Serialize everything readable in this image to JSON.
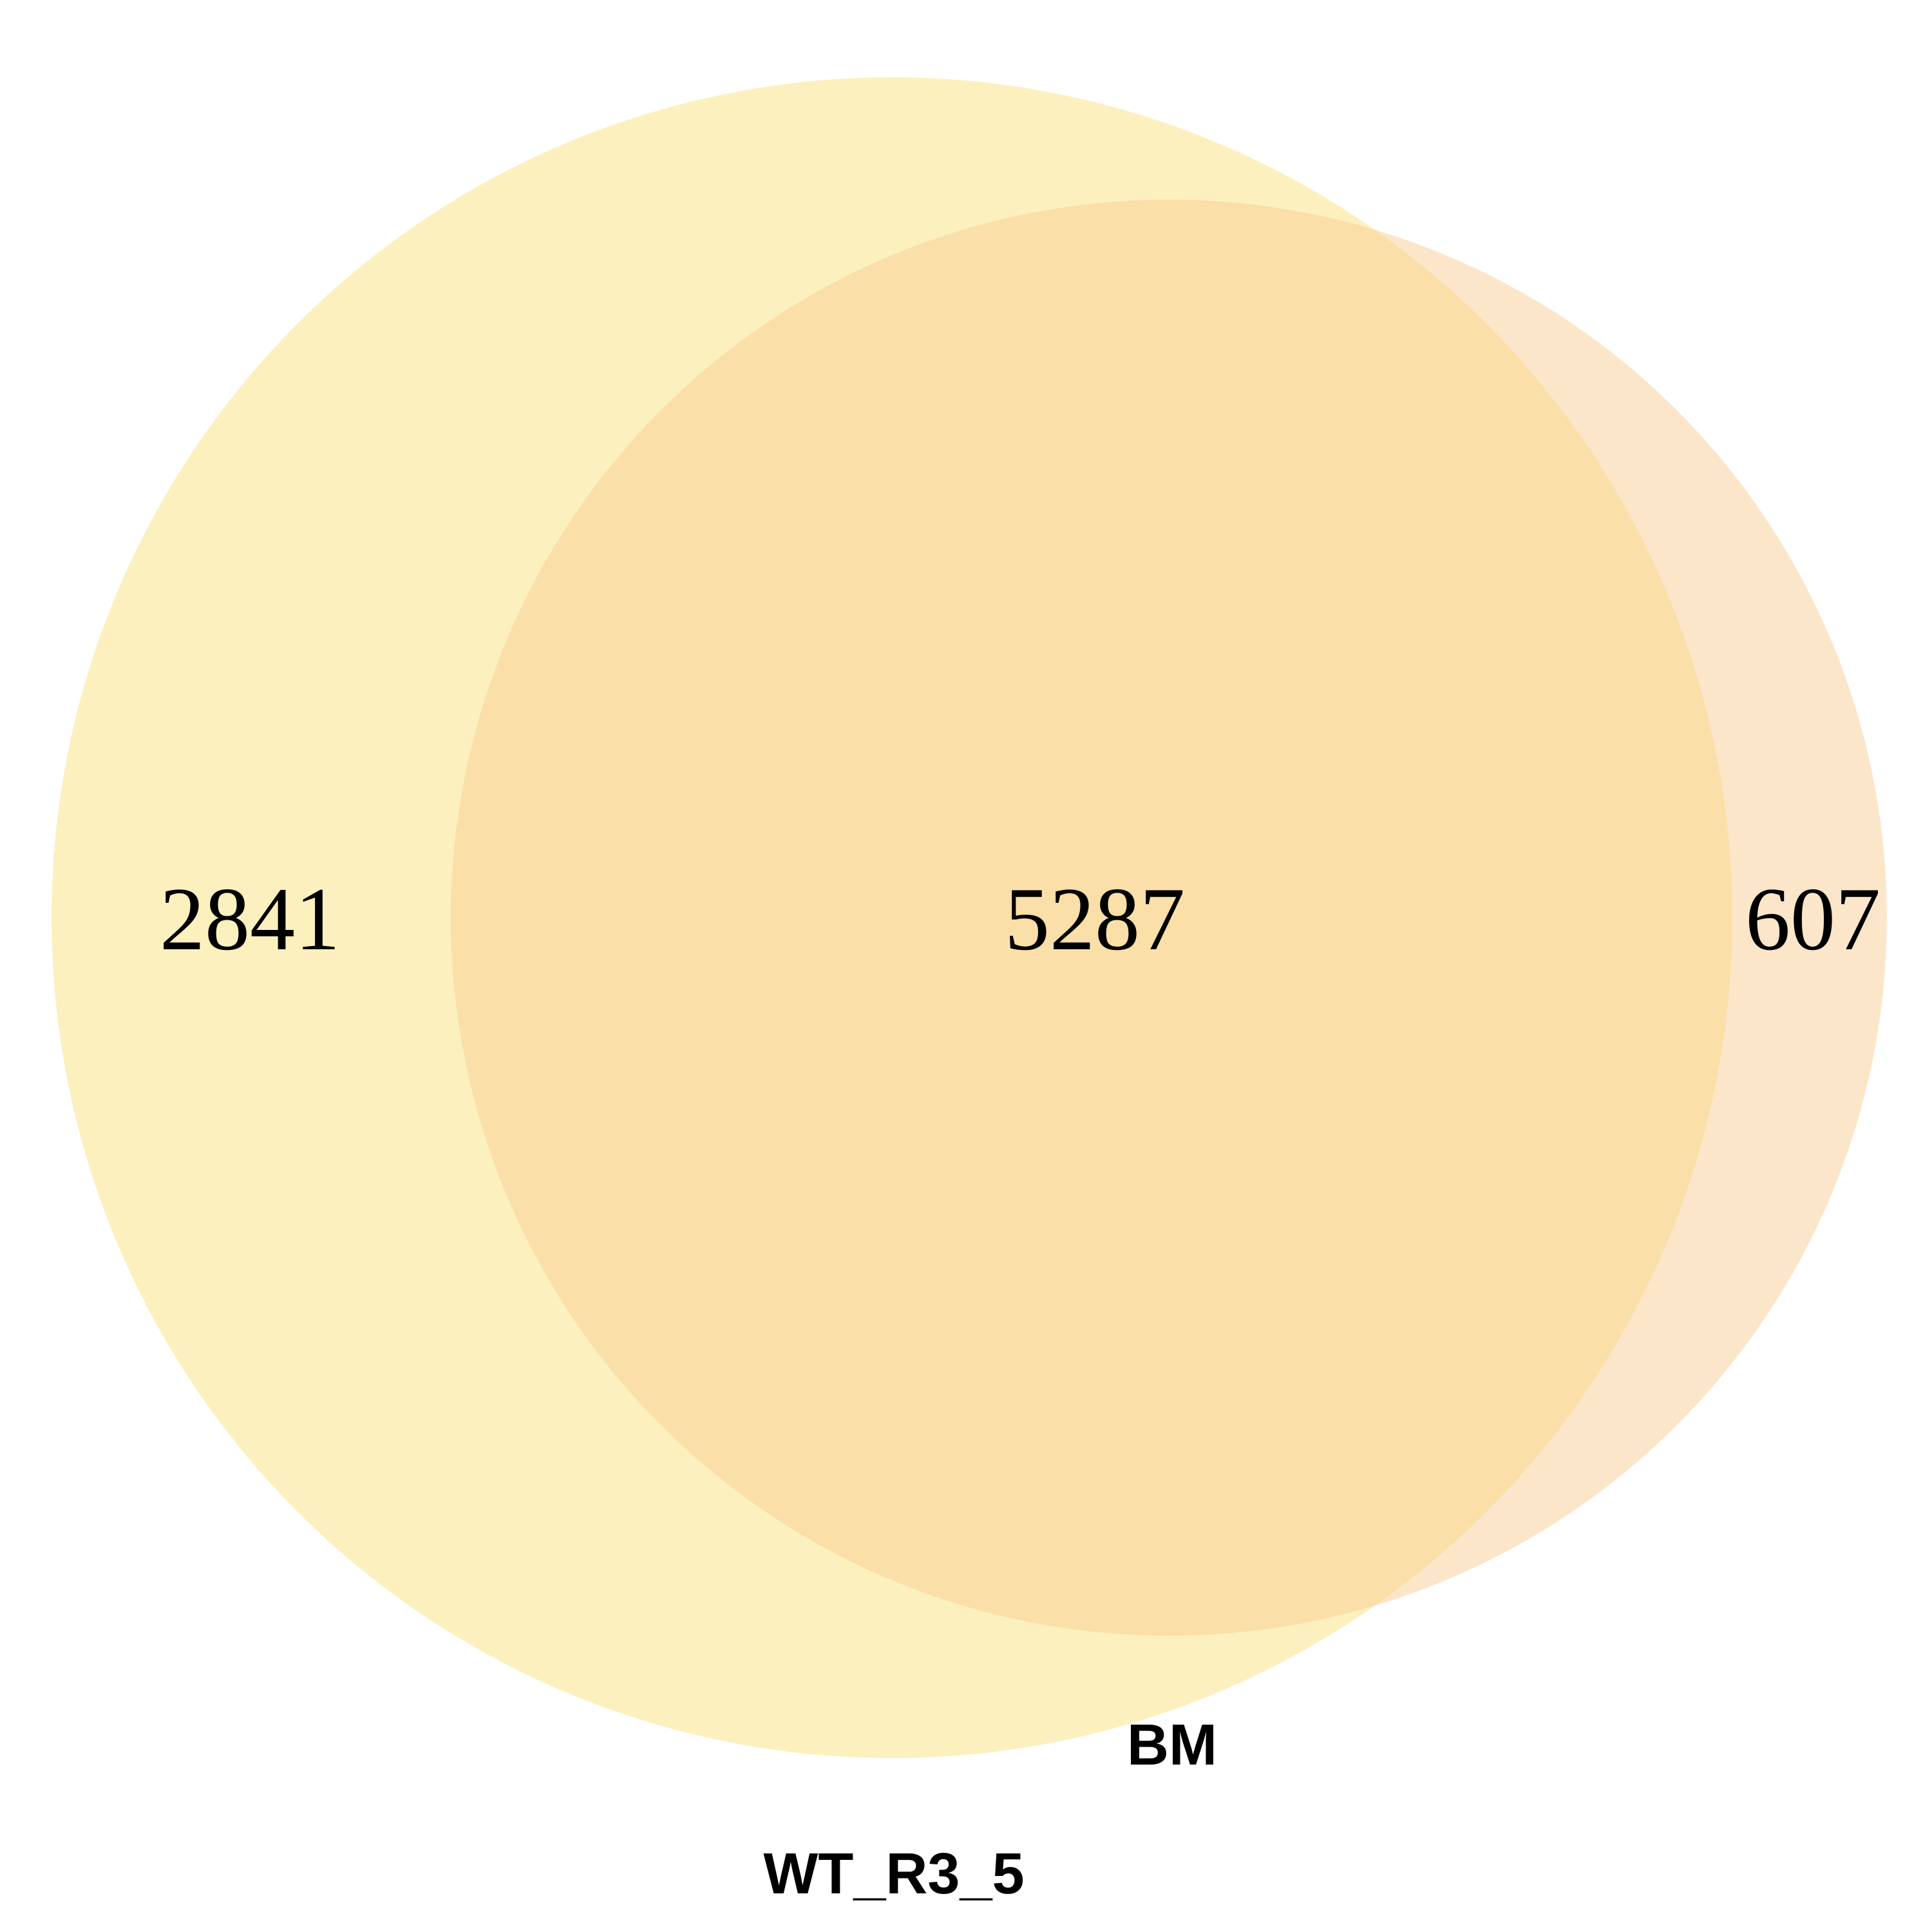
{
  "venn": {
    "sets": [
      {
        "name": "WT_R3_5",
        "fill": "#FCF0BE"
      },
      {
        "name": "BM",
        "fill": "#FCE6CA"
      }
    ],
    "overlap_fill": "#FADFA8",
    "regions": {
      "only_wt": "2841",
      "both": "5287",
      "only_bm": "607"
    }
  }
}
